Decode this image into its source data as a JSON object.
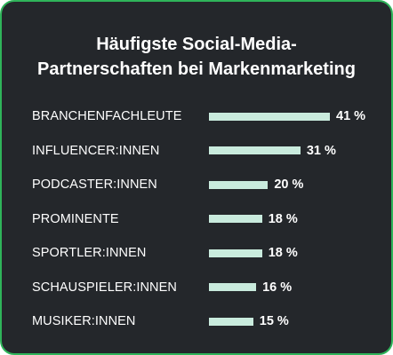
{
  "title_line1": "Häufigste Social-Media-",
  "title_line2": "Partnerschaften bei Markenmarketing",
  "colors": {
    "background": "#24272b",
    "border": "#2fb45a",
    "bar": "#c9ebdd",
    "text": "#ffffff"
  },
  "chart_data": {
    "type": "bar",
    "orientation": "horizontal",
    "title": "Häufigste Social-Media-Partnerschaften bei Markenmarketing",
    "categories": [
      "BRANCHENFACHLEUTE",
      "INFLUENCER:INNEN",
      "PODCASTER:INNEN",
      "PROMINENTE",
      "SPORTLER:INNEN",
      "SCHAUSPIELER:INNEN",
      "MUSIKER:INNEN"
    ],
    "values": [
      41,
      31,
      20,
      18,
      18,
      16,
      15
    ],
    "value_labels": [
      "41 %",
      "31 %",
      "20 %",
      "18 %",
      "18 %",
      "16 %",
      "15 %"
    ],
    "xlim": [
      0,
      41
    ],
    "grid": false,
    "legend": "none"
  }
}
